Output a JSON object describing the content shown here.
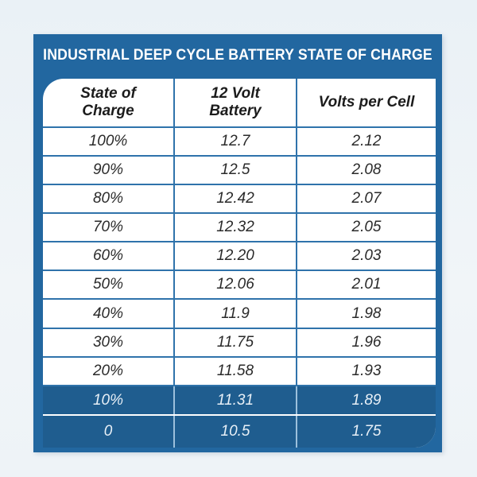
{
  "title": "INDUSTRIAL DEEP CYCLE BATTERY STATE OF CHARGE",
  "headers": {
    "state_line1": "State of",
    "state_line2": "Charge",
    "volt_line1": "12 Volt",
    "volt_line2": "Battery",
    "cell": "Volts per Cell"
  },
  "rows": [
    {
      "soc": "100%",
      "battery": "12.7",
      "cell": "2.12"
    },
    {
      "soc": "90%",
      "battery": "12.5",
      "cell": "2.08"
    },
    {
      "soc": "80%",
      "battery": "12.42",
      "cell": "2.07"
    },
    {
      "soc": "70%",
      "battery": "12.32",
      "cell": "2.05"
    },
    {
      "soc": "60%",
      "battery": "12.20",
      "cell": "2.03"
    },
    {
      "soc": "50%",
      "battery": "12.06",
      "cell": "2.01"
    },
    {
      "soc": "40%",
      "battery": "11.9",
      "cell": "1.98"
    },
    {
      "soc": "30%",
      "battery": "11.75",
      "cell": "1.96"
    },
    {
      "soc": "20%",
      "battery": "11.58",
      "cell": "1.93"
    },
    {
      "soc": "10%",
      "battery": "11.31",
      "cell": "1.89"
    },
    {
      "soc": "0",
      "battery": "10.5",
      "cell": "1.75"
    }
  ],
  "colors": {
    "frame": "#2267a0",
    "grid_line": "#2f73ab",
    "highlight_row": "#1f5d8f"
  }
}
